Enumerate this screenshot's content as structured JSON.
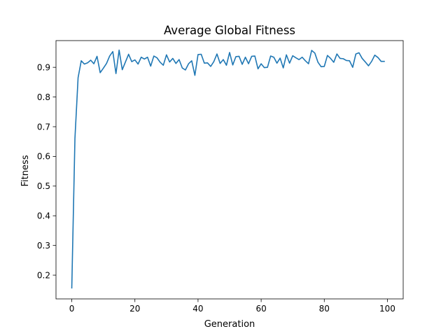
{
  "chart_data": {
    "type": "line",
    "title": "Average Global Fitness",
    "xlabel": "Generation",
    "ylabel": "Fitness",
    "xlim": [
      -5,
      105
    ],
    "ylim": [
      0.12,
      0.99
    ],
    "xticks": [
      0,
      20,
      40,
      60,
      80,
      100
    ],
    "yticks": [
      0.2,
      0.3,
      0.4,
      0.5,
      0.6,
      0.7,
      0.8,
      0.9
    ],
    "grid": false,
    "line_color": "#1f77b4",
    "series": [
      {
        "x": [
          0,
          1,
          2,
          3,
          4,
          5,
          6,
          7,
          8,
          9,
          10,
          11,
          12,
          13,
          14,
          15,
          16,
          17,
          18,
          19,
          20,
          21,
          22,
          23,
          24,
          25,
          26,
          27,
          28,
          29,
          30,
          31,
          32,
          33,
          34,
          35,
          36,
          37,
          38,
          39,
          40,
          41,
          42,
          43,
          44,
          45,
          46,
          47,
          48,
          49,
          50,
          51,
          52,
          53,
          54,
          55,
          56,
          57,
          58,
          59,
          60,
          61,
          62,
          63,
          64,
          65,
          66,
          67,
          68,
          69,
          70,
          71,
          72,
          73,
          74,
          75,
          76,
          77,
          78,
          79,
          80,
          81,
          82,
          83,
          84,
          85,
          86,
          87,
          88,
          89,
          90,
          91,
          92,
          93,
          94,
          95,
          96,
          97,
          98,
          99
        ],
        "values": [
          0.157,
          0.66,
          0.865,
          0.922,
          0.911,
          0.915,
          0.924,
          0.912,
          0.937,
          0.882,
          0.897,
          0.913,
          0.938,
          0.953,
          0.879,
          0.958,
          0.892,
          0.918,
          0.944,
          0.919,
          0.925,
          0.911,
          0.934,
          0.928,
          0.934,
          0.904,
          0.938,
          0.932,
          0.917,
          0.907,
          0.942,
          0.918,
          0.93,
          0.913,
          0.926,
          0.898,
          0.891,
          0.912,
          0.922,
          0.873,
          0.943,
          0.944,
          0.914,
          0.915,
          0.903,
          0.919,
          0.945,
          0.913,
          0.926,
          0.907,
          0.95,
          0.908,
          0.936,
          0.937,
          0.91,
          0.934,
          0.912,
          0.937,
          0.938,
          0.895,
          0.912,
          0.899,
          0.9,
          0.938,
          0.934,
          0.914,
          0.931,
          0.898,
          0.942,
          0.914,
          0.939,
          0.932,
          0.926,
          0.934,
          0.922,
          0.912,
          0.957,
          0.948,
          0.917,
          0.902,
          0.903,
          0.94,
          0.93,
          0.917,
          0.945,
          0.93,
          0.929,
          0.923,
          0.922,
          0.9,
          0.945,
          0.949,
          0.93,
          0.918,
          0.905,
          0.92,
          0.941,
          0.933,
          0.92,
          0.92
        ]
      }
    ]
  }
}
